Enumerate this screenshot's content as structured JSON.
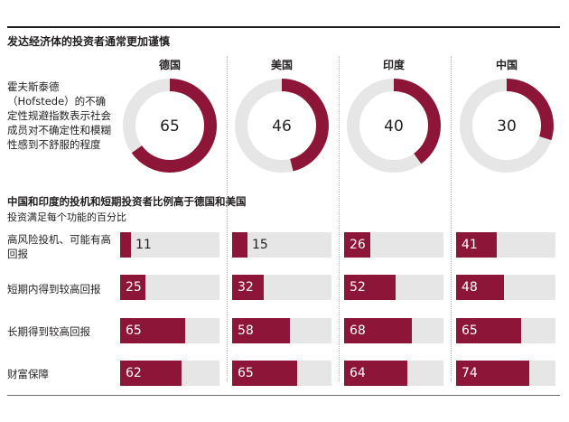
{
  "header": {
    "title": "发达经济体的投资者通常更加谨慎",
    "description": "霍夫斯泰德（Hofstede）的不确定性规避指数表示社会成员对不确定性和模糊性感到不舒服的程度",
    "subtitle": "中国和印度的投机和短期投资者比例高于德国和美国",
    "subnote": "投资满足每个功能的百分比"
  },
  "colors": {
    "accent": "#8c1538",
    "track": "#e6e6e6",
    "text": "#231f20"
  },
  "chart_data": [
    {
      "type": "pie",
      "title": "发达经济体的投资者通常更加谨慎",
      "categories": [
        "德国",
        "美国",
        "印度",
        "中国"
      ],
      "values": [
        65,
        46,
        40,
        30
      ],
      "max": 100
    },
    {
      "type": "bar",
      "title": "中国和印度的投机和短期投资者比例高于德国和美国",
      "subtitle": "投资满足每个功能的百分比",
      "groups": [
        "德国",
        "美国",
        "印度",
        "中国"
      ],
      "categories": [
        "高风险投机、可能有高回报",
        "短期内得到较高回报",
        "长期得到较高回报",
        "财富保障"
      ],
      "series": [
        {
          "name": "德国",
          "values": [
            11,
            25,
            65,
            62
          ]
        },
        {
          "name": "美国",
          "values": [
            15,
            32,
            58,
            65
          ]
        },
        {
          "name": "印度",
          "values": [
            26,
            52,
            68,
            64
          ]
        },
        {
          "name": "中国",
          "values": [
            41,
            48,
            65,
            74
          ]
        }
      ],
      "ylim": [
        0,
        100
      ]
    }
  ]
}
